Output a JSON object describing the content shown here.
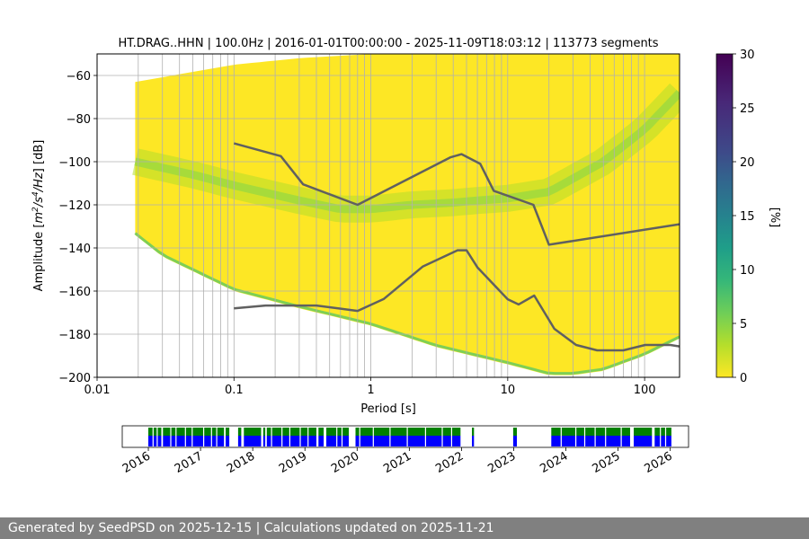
{
  "chart_data": [
    {
      "type": "heatmap",
      "name": "probabilistic power spectral density",
      "title": "HT.DRAG..HHN | 100.0Hz | 2016-01-01T00:00:00 - 2025-11-09T18:03:12 | 113773 segments",
      "xlabel": "Period [s]",
      "ylabel_parts": [
        "Amplitude [",
        "m",
        "2",
        "/",
        "s",
        "4",
        "/",
        "Hz",
        "] [dB]"
      ],
      "xscale": "log",
      "xlim": [
        0.01,
        180
      ],
      "ylim": [
        -200,
        -50
      ],
      "x_ticks": [
        0.01,
        0.1,
        1,
        10,
        100
      ],
      "x_tick_labels": [
        "0.01",
        "0.1",
        "1",
        "10",
        "100"
      ],
      "y_ticks": [
        -200,
        -180,
        -160,
        -140,
        -120,
        -100,
        -80,
        -60
      ],
      "y_tick_labels": [
        "−200",
        "−180",
        "−160",
        "−140",
        "−120",
        "−100",
        "−80",
        "−60"
      ],
      "grid": true,
      "colormap": "viridis_r",
      "colorbar": {
        "label": "[%]",
        "range": [
          0,
          30
        ],
        "ticks": [
          0,
          5,
          10,
          15,
          20,
          25,
          30
        ],
        "tick_labels": [
          "0",
          "5",
          "10",
          "15",
          "20",
          "25",
          "30"
        ]
      },
      "density": {
        "period_range": [
          0.019,
          180
        ],
        "upper_edge": {
          "x": [
            0.019,
            0.1,
            0.3,
            1,
            3,
            10,
            30,
            100,
            180
          ],
          "y": [
            -63,
            -55,
            -52,
            -50,
            -50,
            -50,
            -50,
            -50,
            -50
          ]
        },
        "lower_edge": {
          "x": [
            0.019,
            0.03,
            0.1,
            0.3,
            1,
            3,
            10,
            20,
            30,
            50,
            100,
            180
          ],
          "y": [
            -134,
            -144,
            -160,
            -168,
            -176,
            -186,
            -194,
            -199,
            -199,
            -197,
            -190,
            -182
          ]
        },
        "mode_band": {
          "x": [
            0.019,
            0.05,
            0.1,
            0.3,
            0.6,
            1,
            2,
            4,
            6,
            10,
            20,
            50,
            100,
            180
          ],
          "y": [
            -100,
            -106,
            -111,
            -118,
            -122,
            -122,
            -120,
            -119,
            -118,
            -117,
            -114,
            -100,
            -85,
            -68
          ]
        }
      },
      "noise_models": [
        {
          "name": "NHNM",
          "x": [
            0.1,
            0.22,
            0.32,
            0.8,
            3.8,
            4.6,
            6.3,
            7.9,
            15.4,
            20,
            180
          ],
          "y": [
            -91.5,
            -97.4,
            -110.5,
            -120,
            -98,
            -96.5,
            -101,
            -113.5,
            -120,
            -138.5,
            -129
          ]
        },
        {
          "name": "NLNM",
          "x": [
            0.1,
            0.17,
            0.4,
            0.8,
            1.24,
            2.4,
            4.3,
            5,
            6,
            10,
            12,
            15.6,
            21.9,
            31.6,
            45,
            70,
            101,
            154,
            180
          ],
          "y": [
            -168,
            -166.7,
            -166.7,
            -169.2,
            -163.7,
            -148.6,
            -141.1,
            -141.1,
            -149,
            -163.8,
            -166.2,
            -162.1,
            -177.5,
            -185,
            -187.5,
            -187.5,
            -185,
            -185,
            -185.7
          ]
        }
      ]
    },
    {
      "type": "bar",
      "name": "data availability timeline",
      "x_tick_labels": [
        "2016",
        "2017",
        "2018",
        "2019",
        "2020",
        "2021",
        "2022",
        "2023",
        "2024",
        "2025",
        "2026"
      ],
      "xlim": [
        2015.5,
        2026.35
      ],
      "series_colors": {
        "upper": "#008000",
        "lower": "#0000ff"
      },
      "coverage_spans": [
        [
          2016.0,
          2016.25
        ],
        [
          2016.28,
          2016.42
        ],
        [
          2016.44,
          2017.45
        ],
        [
          2017.48,
          2017.55
        ],
        [
          2017.72,
          2017.78
        ],
        [
          2017.83,
          2018.16
        ],
        [
          2018.2,
          2018.24
        ],
        [
          2018.27,
          2019.22
        ],
        [
          2019.26,
          2019.36
        ],
        [
          2019.41,
          2019.84
        ],
        [
          2019.97,
          2020.04
        ],
        [
          2020.06,
          2021.98
        ],
        [
          2022.2,
          2022.24
        ],
        [
          2022.99,
          2023.06
        ],
        [
          2023.72,
          2025.23
        ],
        [
          2025.3,
          2025.65
        ],
        [
          2025.7,
          2026.02
        ]
      ],
      "gap_ticks": [
        2016.08,
        2016.16,
        2016.52,
        2016.7,
        2016.83,
        2017.05,
        2017.2,
        2017.3,
        2018.35,
        2018.55,
        2018.7,
        2018.9,
        2019.05,
        2019.6,
        2019.7,
        2020.3,
        2020.62,
        2020.95,
        2021.3,
        2021.62,
        2021.8,
        2023.9,
        2024.18,
        2024.35,
        2024.55,
        2024.75,
        2025.05,
        2025.8,
        2025.9
      ]
    }
  ],
  "footer": "Generated by SeedPSD on 2025-12-15 | Calculations updated on 2025-11-21"
}
